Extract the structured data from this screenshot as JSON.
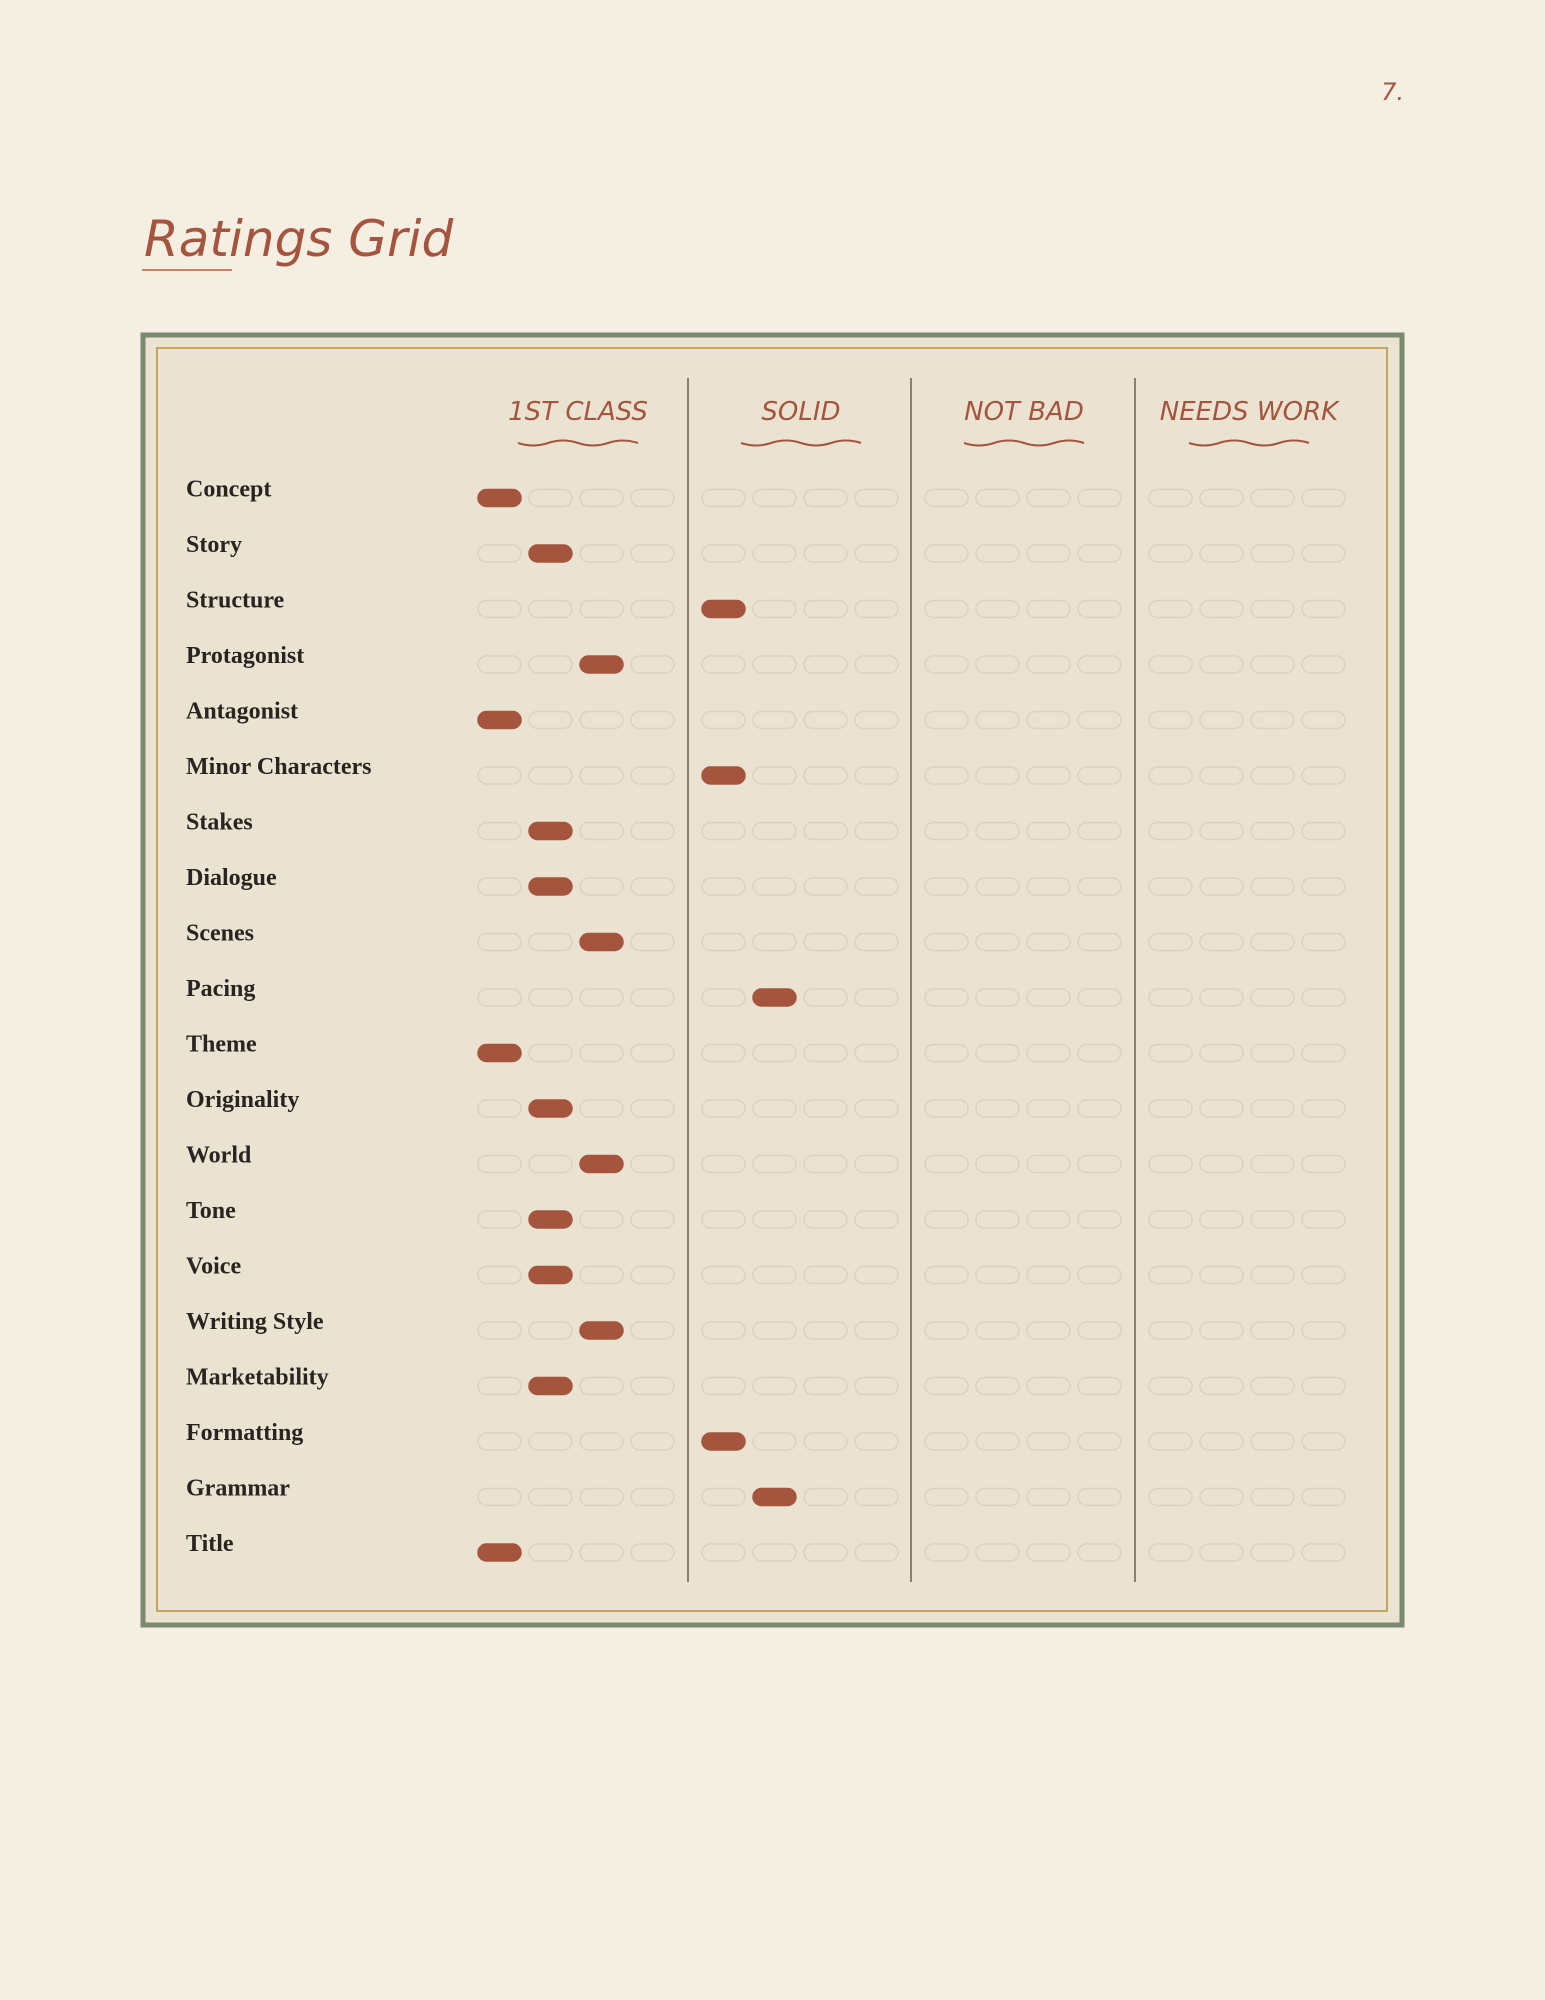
{
  "page_number": "7.",
  "title": "Ratings Grid",
  "columns": [
    "1ST CLASS",
    "SOLID",
    "NOT BAD",
    "NEEDS WORK"
  ],
  "rows": [
    {
      "label": "Concept",
      "rating": 1
    },
    {
      "label": "Story",
      "rating": 2
    },
    {
      "label": "Structure",
      "rating": 5
    },
    {
      "label": "Protagonist",
      "rating": 3
    },
    {
      "label": "Antagonist",
      "rating": 1
    },
    {
      "label": "Minor Characters",
      "rating": 5
    },
    {
      "label": "Stakes",
      "rating": 2
    },
    {
      "label": "Dialogue",
      "rating": 2
    },
    {
      "label": "Scenes",
      "rating": 3
    },
    {
      "label": "Pacing",
      "rating": 6
    },
    {
      "label": "Theme",
      "rating": 1
    },
    {
      "label": "Originality",
      "rating": 2
    },
    {
      "label": "World",
      "rating": 3
    },
    {
      "label": "Tone",
      "rating": 2
    },
    {
      "label": "Voice",
      "rating": 2
    },
    {
      "label": "Writing Style",
      "rating": 3
    },
    {
      "label": "Marketability",
      "rating": 2
    },
    {
      "label": "Formatting",
      "rating": 5
    },
    {
      "label": "Grammar",
      "rating": 6
    },
    {
      "label": "Title",
      "rating": 1
    }
  ]
}
